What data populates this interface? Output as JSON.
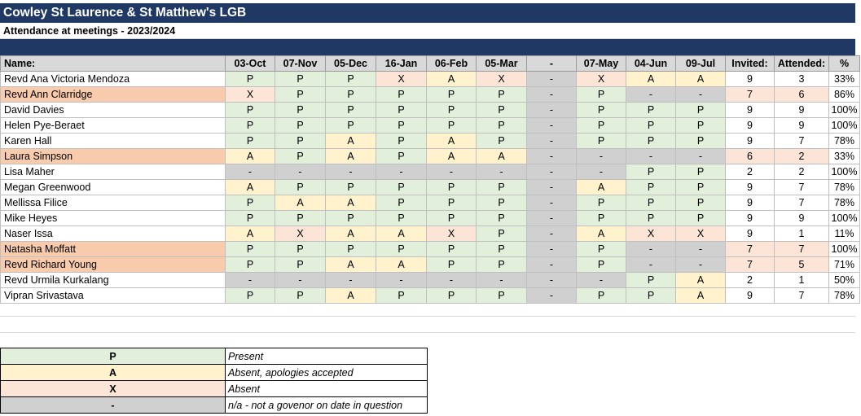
{
  "sheet": {
    "title": "Cowley St Laurence & St Matthew's LGB",
    "subtitle": "Attendance at meetings - 2023/2024"
  },
  "table": {
    "headers": [
      "Name:",
      "03-Oct",
      "07-Nov",
      "05-Dec",
      "16-Jan",
      "06-Feb",
      "05-Mar",
      "-",
      "07-May",
      "04-Jun",
      "09-Jul",
      "Invited:",
      "Attended:",
      "%"
    ],
    "rows": [
      {
        "name": "Revd Ana Victoria Mendoza",
        "highlight": false,
        "marks": [
          "P",
          "P",
          "P",
          "X",
          "A",
          "X",
          "-",
          "X",
          "A",
          "A"
        ],
        "invited": "9",
        "attended": "3",
        "pct": "33%"
      },
      {
        "name": "Revd Ann Clarridge",
        "highlight": true,
        "marks": [
          "X",
          "P",
          "P",
          "P",
          "P",
          "P",
          "-",
          "P",
          "-",
          "-"
        ],
        "invited": "7",
        "attended": "6",
        "pct": "86%"
      },
      {
        "name": "David Davies",
        "highlight": false,
        "marks": [
          "P",
          "P",
          "P",
          "P",
          "P",
          "P",
          "-",
          "P",
          "P",
          "P"
        ],
        "invited": "9",
        "attended": "9",
        "pct": "100%"
      },
      {
        "name": "Helen Pye-Beraet",
        "highlight": false,
        "marks": [
          "P",
          "P",
          "P",
          "P",
          "P",
          "P",
          "-",
          "P",
          "P",
          "P"
        ],
        "invited": "9",
        "attended": "9",
        "pct": "100%"
      },
      {
        "name": "Karen Hall",
        "highlight": false,
        "marks": [
          "P",
          "P",
          "A",
          "P",
          "A",
          "P",
          "-",
          "P",
          "P",
          "P"
        ],
        "invited": "9",
        "attended": "7",
        "pct": "78%"
      },
      {
        "name": "Laura Simpson",
        "highlight": true,
        "marks": [
          "A",
          "P",
          "A",
          "P",
          "A",
          "A",
          "-",
          "-",
          "-",
          "-"
        ],
        "invited": "6",
        "attended": "2",
        "pct": "33%"
      },
      {
        "name": "Lisa Maher",
        "highlight": false,
        "marks": [
          "-",
          "-",
          "-",
          "-",
          "-",
          "-",
          "-",
          "-",
          "P",
          "P"
        ],
        "invited": "2",
        "attended": "2",
        "pct": "100%"
      },
      {
        "name": "Megan Greenwood",
        "highlight": false,
        "marks": [
          "A",
          "P",
          "P",
          "P",
          "P",
          "P",
          "-",
          "A",
          "P",
          "P"
        ],
        "invited": "9",
        "attended": "7",
        "pct": "78%"
      },
      {
        "name": "Mellissa Filice",
        "highlight": false,
        "marks": [
          "P",
          "A",
          "A",
          "P",
          "P",
          "P",
          "-",
          "P",
          "P",
          "P"
        ],
        "invited": "9",
        "attended": "7",
        "pct": "78%"
      },
      {
        "name": "Mike Heyes",
        "highlight": false,
        "marks": [
          "P",
          "P",
          "P",
          "P",
          "P",
          "P",
          "-",
          "P",
          "P",
          "P"
        ],
        "invited": "9",
        "attended": "9",
        "pct": "100%"
      },
      {
        "name": "Naser Issa",
        "highlight": false,
        "marks": [
          "A",
          "X",
          "A",
          "A",
          "X",
          "P",
          "-",
          "A",
          "X",
          "X"
        ],
        "invited": "9",
        "attended": "1",
        "pct": "11%"
      },
      {
        "name": "Natasha Moffatt",
        "highlight": true,
        "marks": [
          "P",
          "P",
          "P",
          "P",
          "P",
          "P",
          "-",
          "P",
          "-",
          "-"
        ],
        "invited": "7",
        "attended": "7",
        "pct": "100%"
      },
      {
        "name": "Revd Richard Young",
        "highlight": true,
        "marks": [
          "P",
          "P",
          "A",
          "A",
          "P",
          "P",
          "-",
          "P",
          "-",
          "-"
        ],
        "invited": "7",
        "attended": "5",
        "pct": "71%"
      },
      {
        "name": "Revd Urmila Kurkalang",
        "highlight": false,
        "marks": [
          "-",
          "-",
          "-",
          "-",
          "-",
          "-",
          "-",
          "-",
          "P",
          "A"
        ],
        "invited": "2",
        "attended": "1",
        "pct": "50%"
      },
      {
        "name": "Vipran Srivastava",
        "highlight": false,
        "marks": [
          "P",
          "P",
          "A",
          "P",
          "P",
          "P",
          "-",
          "P",
          "P",
          "A"
        ],
        "invited": "9",
        "attended": "7",
        "pct": "78%"
      }
    ]
  },
  "legend": [
    {
      "symbol": "P",
      "description": "Present"
    },
    {
      "symbol": "A",
      "description": "Absent, apologies accepted"
    },
    {
      "symbol": "X",
      "description": "Absent"
    },
    {
      "symbol": "-",
      "description": "n/a - not a govenor on date in question"
    }
  ],
  "colors": {
    "header_band": "#1f3864",
    "present": "#e2efda",
    "apologies": "#fff2cc",
    "absent": "#fce4d6",
    "not_applicable": "#d0d0d0",
    "highlight_name": "#f8cbad"
  }
}
